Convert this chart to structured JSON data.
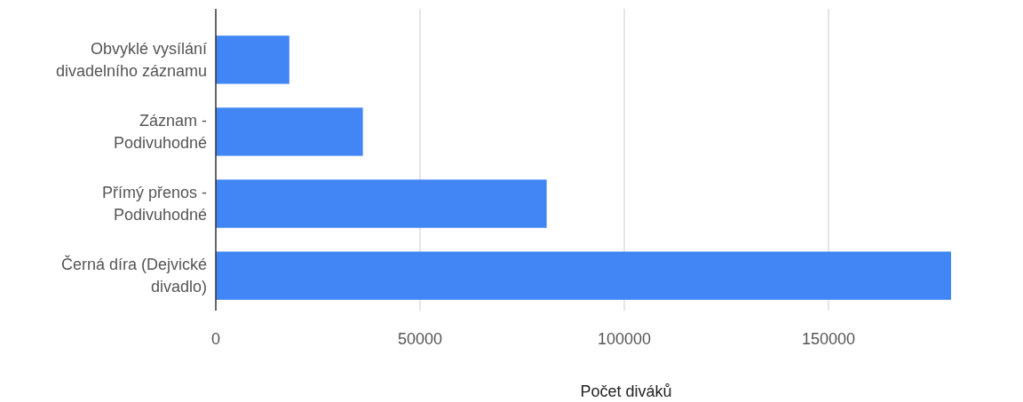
{
  "chart_data": {
    "type": "bar",
    "orientation": "horizontal",
    "xlabel": "Počet diváků",
    "categories": [
      "Obvyklé vysílání divadelního záznamu",
      "Záznam - Podivuhodné",
      "Přímý přenos - Podivuhodné",
      "Černá díra (Dejvické divadlo)"
    ],
    "values": [
      18000,
      36000,
      81000,
      180000
    ],
    "color": "#4285f4",
    "xlim": [
      0,
      180000
    ],
    "xticks": [
      0,
      50000,
      100000,
      150000
    ],
    "grid": "x"
  }
}
